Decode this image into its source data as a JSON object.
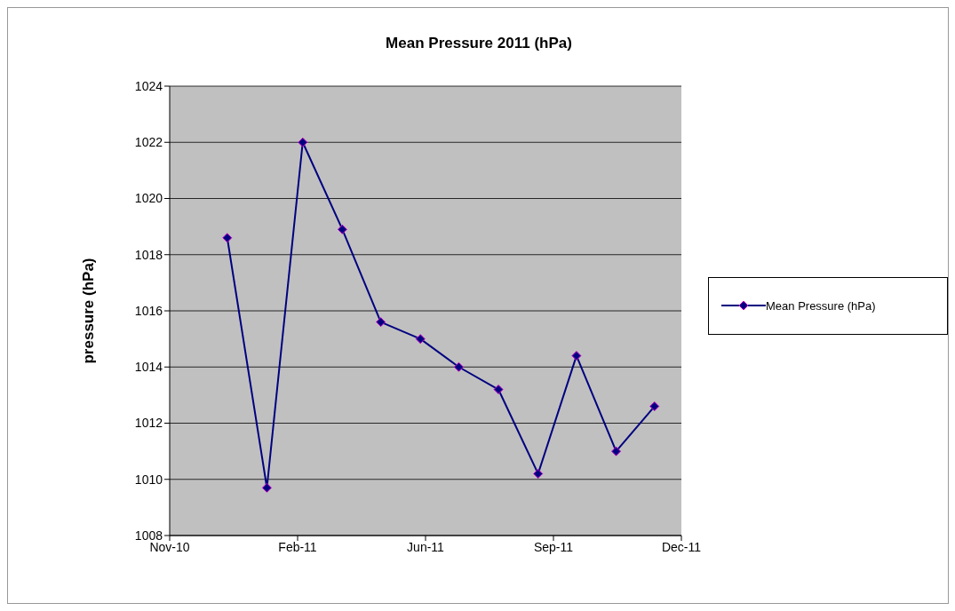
{
  "chart_data": {
    "type": "line",
    "title": "Mean Pressure 2011 (hPa)",
    "ylabel": "pressure (hPa)",
    "x": [
      "2011-01-01",
      "2011-02-01",
      "2011-03-01",
      "2011-04-01",
      "2011-05-01",
      "2011-06-01",
      "2011-07-01",
      "2011-08-01",
      "2011-09-01",
      "2011-10-01",
      "2011-11-01",
      "2011-12-01"
    ],
    "series": [
      {
        "name": "Mean Pressure (hPa)",
        "color": "#000080",
        "values": [
          1018.6,
          1009.7,
          1022.0,
          1018.9,
          1015.6,
          1015.0,
          1014.0,
          1013.2,
          1010.2,
          1014.4,
          1011.0,
          1012.6
        ]
      }
    ],
    "xlim": [
      "2010-11-17",
      "2011-12-22"
    ],
    "xticks": [
      {
        "value": "2010-11-17",
        "label": "Nov-10"
      },
      {
        "value": "2011-02-25",
        "label": "Feb-11"
      },
      {
        "value": "2011-06-05",
        "label": "Jun-11"
      },
      {
        "value": "2011-09-13",
        "label": "Sep-11"
      },
      {
        "value": "2011-12-22",
        "label": "Dec-11"
      }
    ],
    "ylim": [
      1008,
      1024
    ],
    "yticks": [
      1008,
      1010,
      1012,
      1014,
      1016,
      1018,
      1020,
      1022,
      1024
    ],
    "grid": "y",
    "legend": "right",
    "marker": "diamond",
    "line_style": "solid"
  }
}
